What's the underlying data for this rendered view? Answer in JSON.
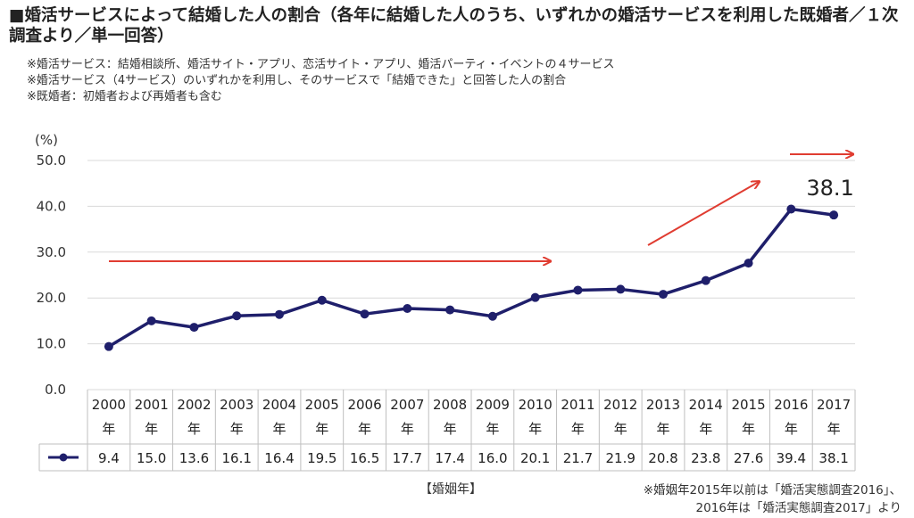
{
  "title": "■婚活サービスによって結婚した人の割合（各年に結婚した人のうち、いずれかの婚活サービスを利用した既婚者／１次調査より／単一回答）",
  "notes": [
    "※婚活サービス：結婚相談所、婚活サイト・アプリ、恋活サイト・アプリ、婚活パーティ・イベントの４サービス",
    "※婚活サービス（4サービス）のいずれかを利用し、そのサービスで「結婚できた」と回答した人の割合",
    "※既婚者：初婚者および再婚者も含む"
  ],
  "source": [
    "※婚姻年2015年以前は「婚活実態調査2016」、",
    "2016年は「婚活実態調査2017」より"
  ],
  "colors": {
    "line": "#1f1f6b",
    "arrow": "#e03c31",
    "grid": "#d9d9d9",
    "table_border": "#bfbfbf"
  },
  "chart_data": {
    "type": "line",
    "ylabel": "(%)",
    "xlabel": "【婚姻年】",
    "ylim": [
      0,
      50
    ],
    "yticks": [
      "0.0",
      "10.0",
      "20.0",
      "30.0",
      "40.0",
      "50.0"
    ],
    "year_suffix": "年",
    "categories": [
      "2000",
      "2001",
      "2002",
      "2003",
      "2004",
      "2005",
      "2006",
      "2007",
      "2008",
      "2009",
      "2010",
      "2011",
      "2012",
      "2013",
      "2014",
      "2015",
      "2016",
      "2017"
    ],
    "series": [
      {
        "values": [
          9.4,
          15.0,
          13.6,
          16.1,
          16.4,
          19.5,
          16.5,
          17.7,
          17.4,
          16.0,
          20.1,
          21.7,
          21.9,
          20.8,
          23.8,
          27.6,
          39.4,
          38.1
        ]
      }
    ],
    "value_labels": [
      "9.4",
      "15.0",
      "13.6",
      "16.1",
      "16.4",
      "19.5",
      "16.5",
      "17.7",
      "17.4",
      "16.0",
      "20.1",
      "21.7",
      "21.9",
      "20.8",
      "23.8",
      "27.6",
      "39.4",
      "38.1"
    ],
    "annotations": [
      {
        "text": "38.1"
      }
    ],
    "grid": true,
    "legend": "table"
  }
}
